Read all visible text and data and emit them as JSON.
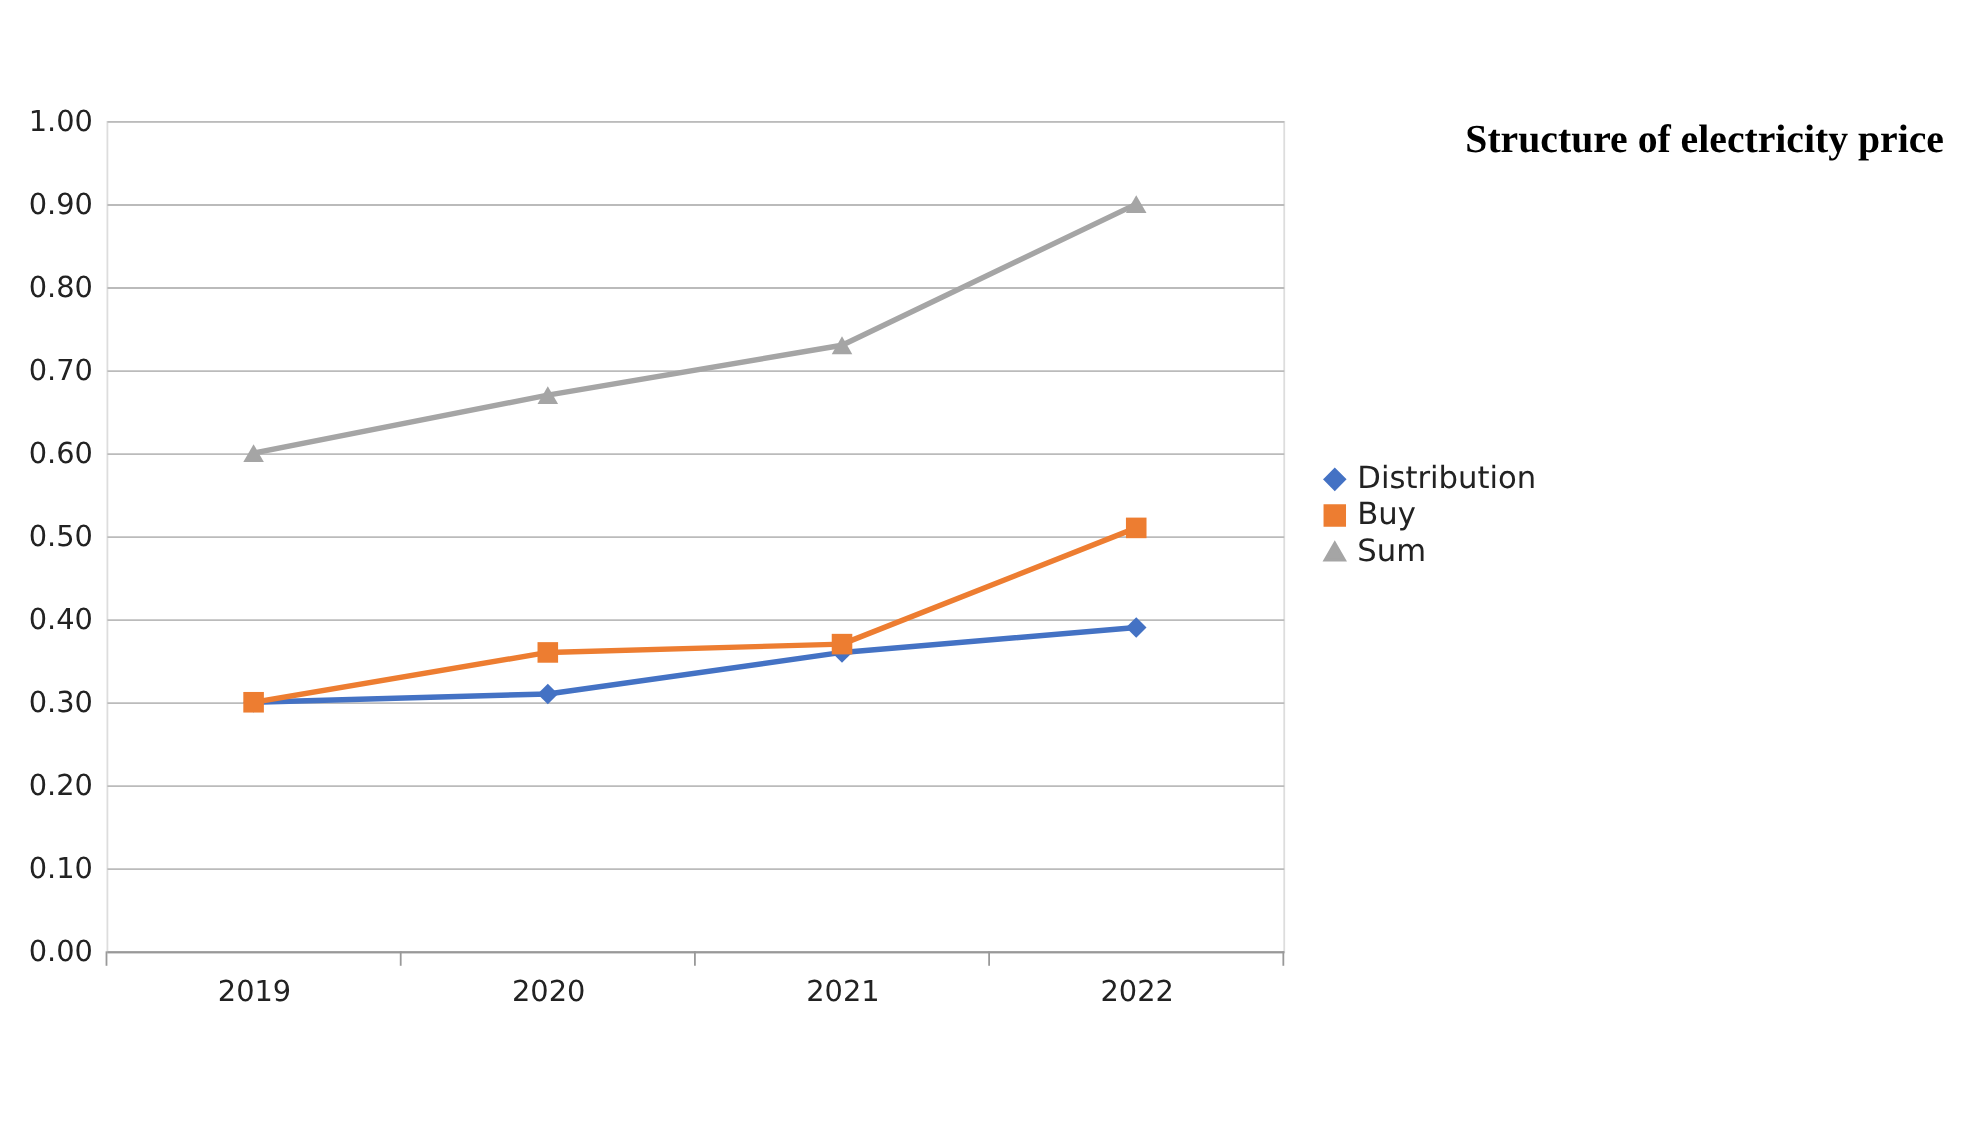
{
  "chart_data": {
    "type": "line",
    "title": "Structure of electricity price",
    "categories": [
      "2019",
      "2020",
      "2021",
      "2022"
    ],
    "series": [
      {
        "name": "Distribution",
        "color": "#4472c4",
        "marker": "diamond",
        "values": [
          0.3,
          0.31,
          0.36,
          0.39
        ]
      },
      {
        "name": "Buy",
        "color": "#ed7d31",
        "marker": "square",
        "values": [
          0.3,
          0.36,
          0.37,
          0.51
        ]
      },
      {
        "name": "Sum",
        "color": "#a5a5a5",
        "marker": "triangle",
        "values": [
          0.6,
          0.67,
          0.73,
          0.9
        ]
      }
    ],
    "ylim": [
      0,
      1
    ],
    "yticks": [
      {
        "value": 0,
        "label": "0.00"
      },
      {
        "value": 0.1,
        "label": "0.10"
      },
      {
        "value": 0.2,
        "label": "0.20"
      },
      {
        "value": 0.3,
        "label": "0.30"
      },
      {
        "value": 0.4,
        "label": "0.40"
      },
      {
        "value": 0.5,
        "label": "0.50"
      },
      {
        "value": 0.6,
        "label": "0.60"
      },
      {
        "value": 0.7,
        "label": "0.70"
      },
      {
        "value": 0.8,
        "label": "0.80"
      },
      {
        "value": 0.9,
        "label": "0.90"
      },
      {
        "value": 1,
        "label": "1.00"
      }
    ],
    "grid": "y",
    "legend": "right"
  }
}
